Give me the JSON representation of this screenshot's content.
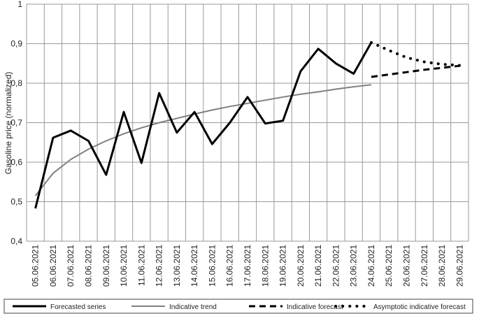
{
  "chart_data": {
    "type": "line",
    "title": "",
    "xlabel": "",
    "ylabel": "Gasoline price (normalized)",
    "ylim": [
      0.4,
      1.0
    ],
    "yticks": [
      "0,4",
      "0,5",
      "0,6",
      "0,7",
      "0,8",
      "0,9",
      "1"
    ],
    "grid": true,
    "legend_position": "bottom",
    "categories": [
      "05.06.2021",
      "06.06.2021",
      "07.06.2021",
      "08.06.2021",
      "09.06.2021",
      "10.06.2021",
      "11.06.2021",
      "12.06.2021",
      "13.06.2021",
      "14.06.2021",
      "15.06.2021",
      "16.06.2021",
      "17.06.2021",
      "18.06.2021",
      "19.06.2021",
      "20.06.2021",
      "21.06.2021",
      "22.06.2021",
      "23.06.2021",
      "24.06.2021",
      "25.06.2021",
      "26.06.2021",
      "27.06.2021",
      "28.06.2021",
      "29.06.2021"
    ],
    "series": [
      {
        "name": "Forecasted series",
        "style": "solid-thick",
        "color": "#000000",
        "values": [
          0.483,
          0.662,
          0.68,
          0.654,
          0.568,
          0.727,
          0.598,
          0.775,
          0.675,
          0.727,
          0.646,
          0.7,
          0.765,
          0.698,
          0.705,
          0.83,
          0.887,
          0.85,
          0.824,
          0.903,
          null,
          null,
          null,
          null,
          null
        ]
      },
      {
        "name": "Indicative trend",
        "style": "solid-thin",
        "color": "#808080",
        "values": [
          0.515,
          0.572,
          0.607,
          0.633,
          0.654,
          0.672,
          0.687,
          0.7,
          0.711,
          0.722,
          0.732,
          0.741,
          0.749,
          0.757,
          0.765,
          0.772,
          0.778,
          0.785,
          0.791,
          0.796,
          null,
          null,
          null,
          null,
          null
        ]
      },
      {
        "name": "Indicative forecast",
        "style": "dashed",
        "color": "#000000",
        "values": [
          null,
          null,
          null,
          null,
          null,
          null,
          null,
          null,
          null,
          null,
          null,
          null,
          null,
          null,
          null,
          null,
          null,
          null,
          null,
          0.816,
          0.822,
          0.828,
          0.834,
          0.839,
          0.844
        ]
      },
      {
        "name": "Asymptotic indicative forecast",
        "style": "dotted",
        "color": "#000000",
        "values": [
          null,
          null,
          null,
          null,
          null,
          null,
          null,
          null,
          null,
          null,
          null,
          null,
          null,
          null,
          null,
          null,
          null,
          null,
          null,
          0.903,
          0.883,
          0.865,
          0.854,
          0.848,
          0.845
        ]
      }
    ]
  }
}
